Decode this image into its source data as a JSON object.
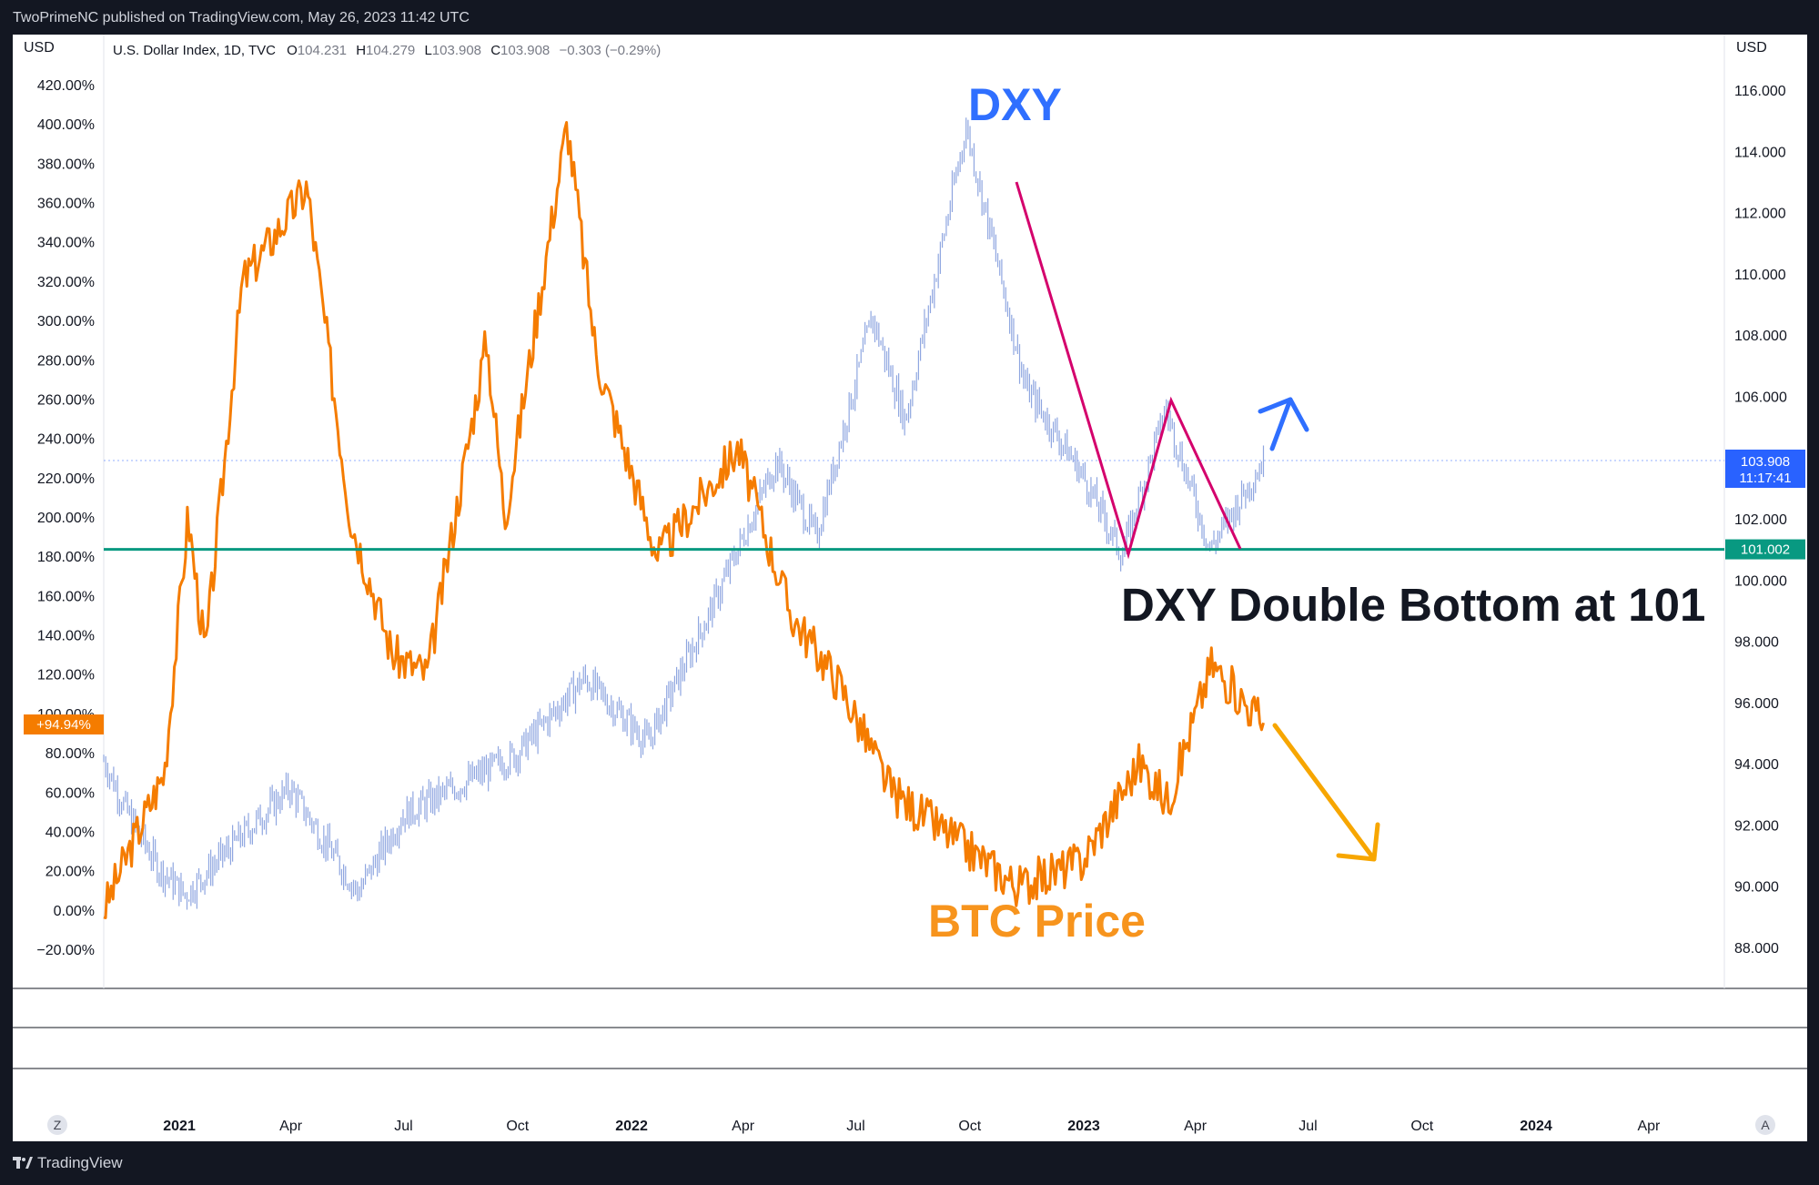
{
  "header": {
    "published": "TwoPrimeNC published on TradingView.com, May 26, 2023 11:42 UTC"
  },
  "footer": {
    "brand": "TradingView"
  },
  "legend": {
    "symbol": "U.S. Dollar Index, 1D, TVC",
    "o_label": "O",
    "o": "104.231",
    "h_label": "H",
    "h": "104.279",
    "l_label": "L",
    "l": "103.908",
    "c_label": "C",
    "c": "103.908",
    "change": "−0.303 (−0.29%)"
  },
  "colors": {
    "dxy": "#2962ff",
    "dxy_bars": "#8fa6e0",
    "btc": "#f57c00",
    "support": "#089981",
    "pink": "#d4006c",
    "arrow_blue": "#2f6fff",
    "arrow_orange": "#f7a600",
    "background": "#ffffff",
    "chrome": "#131722"
  },
  "chart_data": {
    "type": "line",
    "left_axis": {
      "unit": "USD",
      "ticks": [
        "420.00%",
        "400.00%",
        "380.00%",
        "360.00%",
        "340.00%",
        "320.00%",
        "300.00%",
        "280.00%",
        "260.00%",
        "240.00%",
        "220.00%",
        "200.00%",
        "180.00%",
        "160.00%",
        "140.00%",
        "120.00%",
        "100.00%",
        "80.00%",
        "60.00%",
        "40.00%",
        "20.00%",
        "0.00%",
        "−20.00%"
      ],
      "range": [
        -20,
        420
      ]
    },
    "right_axis": {
      "unit": "USD",
      "ticks": [
        "116.000",
        "114.000",
        "112.000",
        "110.000",
        "108.000",
        "106.000",
        "104.000",
        "102.000",
        "100.000",
        "98.000",
        "96.000",
        "94.000",
        "92.000",
        "90.000",
        "88.000"
      ],
      "range": [
        88,
        116
      ]
    },
    "x_axis": {
      "labels": [
        "2021",
        "Apr",
        "Jul",
        "Oct",
        "2022",
        "Apr",
        "Jul",
        "Oct",
        "2023",
        "Apr",
        "Jul",
        "Oct",
        "2024",
        "Apr"
      ],
      "bold": [
        "2021",
        "2022",
        "2023",
        "2024"
      ],
      "range": [
        "2020-11-01",
        "2024-06-01"
      ]
    },
    "series": [
      {
        "name": "U.S. Dollar Index",
        "axis": "right",
        "points": [
          [
            "2020-11-01",
            94.1
          ],
          [
            "2020-11-20",
            92.4
          ],
          [
            "2020-12-15",
            90.6
          ],
          [
            "2021-01-06",
            89.7
          ],
          [
            "2021-02-05",
            91.0
          ],
          [
            "2021-03-31",
            93.2
          ],
          [
            "2021-05-25",
            89.8
          ],
          [
            "2021-06-30",
            92.3
          ],
          [
            "2021-08-20",
            93.4
          ],
          [
            "2021-09-30",
            94.3
          ],
          [
            "2021-11-24",
            96.8
          ],
          [
            "2022-01-14",
            94.7
          ],
          [
            "2022-03-07",
            99.1
          ],
          [
            "2022-04-28",
            103.9
          ],
          [
            "2022-05-30",
            101.4
          ],
          [
            "2022-07-14",
            108.6
          ],
          [
            "2022-08-10",
            105.2
          ],
          [
            "2022-09-28",
            114.8
          ],
          [
            "2022-11-15",
            106.3
          ],
          [
            "2022-12-30",
            103.5
          ],
          [
            "2023-02-01",
            100.8
          ],
          [
            "2023-03-08",
            105.6
          ],
          [
            "2023-04-13",
            101.0
          ],
          [
            "2023-05-26",
            103.9
          ]
        ]
      },
      {
        "name": "BTC",
        "axis": "left",
        "points": [
          [
            "2020-11-01",
            0
          ],
          [
            "2020-11-25",
            35
          ],
          [
            "2020-12-20",
            70
          ],
          [
            "2021-01-08",
            200
          ],
          [
            "2021-01-22",
            130
          ],
          [
            "2021-02-21",
            320
          ],
          [
            "2021-03-13",
            338
          ],
          [
            "2021-04-14",
            368
          ],
          [
            "2021-05-19",
            200
          ],
          [
            "2021-06-22",
            130
          ],
          [
            "2021-07-20",
            120
          ],
          [
            "2021-09-06",
            290
          ],
          [
            "2021-09-21",
            200
          ],
          [
            "2021-11-10",
            400
          ],
          [
            "2021-12-04",
            280
          ],
          [
            "2022-01-22",
            180
          ],
          [
            "2022-03-28",
            235
          ],
          [
            "2022-05-10",
            150
          ],
          [
            "2022-06-18",
            115
          ],
          [
            "2022-07-30",
            60
          ],
          [
            "2022-11-09",
            12
          ],
          [
            "2022-12-31",
            25
          ],
          [
            "2023-02-15",
            75
          ],
          [
            "2023-03-10",
            55
          ],
          [
            "2023-04-14",
            125
          ],
          [
            "2023-05-26",
            95
          ]
        ]
      }
    ],
    "markers": {
      "btc_last_label": "+94.94%",
      "dxy_last_label": "103.908",
      "dxy_last_countdown": "11:17:41",
      "support_label": "101.002",
      "support_level": 101.002
    },
    "annotations": {
      "dxy_title": "DXY",
      "btc_title": "BTC Price",
      "double_bottom": "DXY Double Bottom at 101"
    },
    "grid": false,
    "nav_buttons": {
      "left": "Z",
      "right": "A"
    }
  }
}
